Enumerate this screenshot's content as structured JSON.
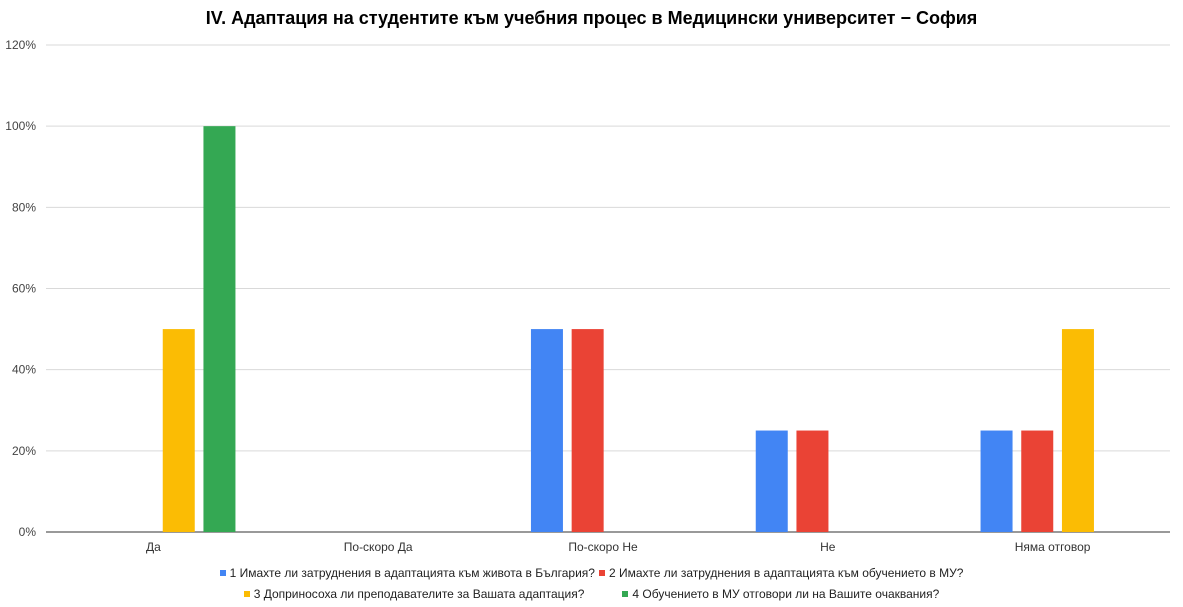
{
  "chart_data": {
    "type": "bar",
    "title": "IV. Адаптация на студентите към учебния процес в Медицински университет − София",
    "categories": [
      "Да",
      "По-скоро Да",
      "По-скоро Не",
      "Не",
      "Няма отговор"
    ],
    "ylim": [
      0,
      120
    ],
    "yticks": [
      "0%",
      "20%",
      "40%",
      "60%",
      "80%",
      "100%",
      "120%"
    ],
    "grid": true,
    "legend_position": "bottom",
    "series": [
      {
        "name": "1 Имахте ли затруднения в адаптацията към живота в България?",
        "color": "#4285F4",
        "values": [
          0,
          0,
          50,
          25,
          25
        ]
      },
      {
        "name": "2 Имахте ли затруднения в адаптацията към обучението в МУ?",
        "color": "#EA4335",
        "values": [
          0,
          0,
          50,
          25,
          25
        ]
      },
      {
        "name": "3 Доприносоха ли преподавателите за Вашата адаптация?",
        "color": "#FBBC04",
        "values": [
          50,
          0,
          0,
          0,
          50
        ]
      },
      {
        "name": "4 Обучението в МУ отговори ли на Вашите очаквания?",
        "color": "#34A853",
        "values": [
          100,
          0,
          0,
          0,
          0
        ]
      }
    ]
  }
}
